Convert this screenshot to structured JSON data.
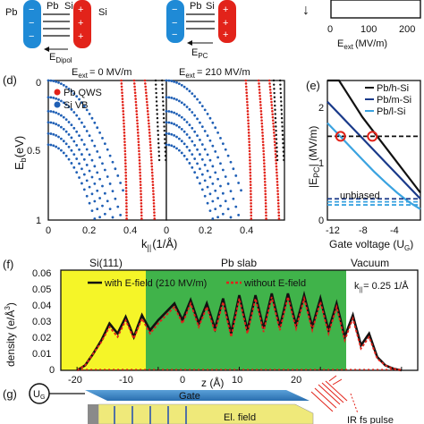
{
  "top": {
    "left_pb": "Pb",
    "left_pb2": "Pb",
    "left_si": "Si",
    "left_si2": "Si",
    "left_field": "E",
    "left_field_sub": "Dipol",
    "mid_pb": "Pb",
    "mid_si": "Si",
    "mid_field": "E",
    "mid_field_sub": "PC",
    "panel_c_xlabel": "E",
    "panel_c_xlabel_sub": "ext",
    "panel_c_xunit": "(MV/m)",
    "panel_c_ticks": [
      "0",
      "100",
      "200"
    ]
  },
  "panel_d": {
    "label": "(d)",
    "title_left": "E",
    "title_left_sub": "ext",
    "title_left_val": "= 0 MV/m",
    "title_right": "E",
    "title_right_sub": "ext",
    "title_right_val": "= 210 MV/m",
    "legend": [
      "Pb QWS",
      "Si VB"
    ],
    "ylabel": "E",
    "ylabel_sub": "b",
    "ylabel_unit": "(eV)",
    "xlabel": "k",
    "xlabel_sub": "||",
    "xlabel_unit": "(1/Å)",
    "yticks": [
      "0",
      "0.5",
      "1"
    ],
    "xticks_left": [
      "0",
      "0.2",
      "0.4"
    ],
    "xticks_right": [
      "0",
      "0.2",
      "0.4"
    ]
  },
  "panel_e": {
    "label": "(e)",
    "legend": [
      "Pb/h-Si",
      "Pb/m-Si",
      "Pb/l-Si"
    ],
    "ylabel": "|E",
    "ylabel_sub": "PC",
    "ylabel_unit": "| (MV/m)",
    "xlabel": "Gate voltage (U",
    "xlabel_sub": "G",
    "xlabel_end": ")",
    "annotation": "unbiased",
    "yticks": [
      "0",
      "1",
      "2"
    ],
    "xticks": [
      "-12",
      "-8",
      "-4"
    ]
  },
  "panel_f": {
    "label": "(f)",
    "region_si": "Si(111)",
    "region_pb": "Pb slab",
    "region_vac": "Vacuum",
    "legend_with": "with E-field (210 MV/m)",
    "legend_without": "without E-field",
    "k_label": "k",
    "k_label_sub": "||",
    "k_label_val": "= 0.25 1/Å",
    "ylabel": "density (e/Å",
    "ylabel_sup": "3",
    "ylabel_end": ")",
    "xlabel": "z (Å)",
    "yticks": [
      "0",
      "0.01",
      "0.02",
      "0.03",
      "0.04",
      "0.05",
      "0.06"
    ],
    "xticks": [
      "-20",
      "-10",
      "0",
      "10",
      "20"
    ]
  },
  "panel_g": {
    "label": "(g)",
    "ug": "U",
    "ug_sub": "G",
    "gate": "Gate",
    "efield": "El. field",
    "pulse": "IR fs pulse"
  },
  "colors": {
    "pb_red": "#e2231a",
    "si_blue": "#1f5fb5",
    "yellow": "#f5f528",
    "green": "#40b34a",
    "gate_blue": "#2f7bbf",
    "lsi_blue": "#3aa3e0"
  },
  "chart_data": [
    {
      "type": "scatter",
      "title": "E_ext = 0 MV/m / E_ext = 210 MV/m",
      "xlabel": "k|| (1/Å)",
      "ylabel": "E_b (eV)",
      "xlim": [
        0,
        0.55
      ],
      "ylim": [
        1,
        0
      ],
      "series": [
        {
          "name": "Pb QWS",
          "description": "red dotted parabolic bands dispersing downward from ~0.5 eV at k≈0.35–0.5"
        },
        {
          "name": "Si VB",
          "description": "blue dotted bands dispersing from ~0–0.4 eV at k=0 down to 1 eV at k≈0.1–0.3"
        }
      ]
    },
    {
      "type": "line",
      "xlabel": "Gate voltage (U_G)",
      "ylabel": "|E_PC| (MV/m)",
      "xlim": [
        -14,
        -2
      ],
      "ylim": [
        0,
        2.3
      ],
      "series": [
        {
          "name": "Pb/h-Si",
          "x": [
            -14,
            -12.5,
            -11,
            -9.5,
            -8,
            -6.5,
            -5,
            -3.5,
            -2
          ],
          "y": [
            2.6,
            2.3,
            2.0,
            1.7,
            1.45,
            1.2,
            0.95,
            0.7,
            0.45
          ]
        },
        {
          "name": "Pb/m-Si",
          "x": [
            -14,
            -12.5,
            -11,
            -9.5,
            -8,
            -6.5,
            -5,
            -3.5,
            -2
          ],
          "y": [
            1.95,
            1.75,
            1.55,
            1.35,
            1.15,
            0.95,
            0.75,
            0.55,
            0.35
          ]
        },
        {
          "name": "Pb/l-Si",
          "x": [
            -14,
            -12.5,
            -11,
            -9.5,
            -8,
            -6.5,
            -5,
            -3.5,
            -2
          ],
          "y": [
            1.6,
            1.4,
            1.2,
            1.0,
            0.8,
            0.62,
            0.45,
            0.3,
            0.18
          ]
        }
      ],
      "reference_lines": [
        1.38,
        0.35,
        0.3,
        0.25
      ],
      "markers": [
        {
          "x": -12.3,
          "y": 1.38
        },
        {
          "x": -8.2,
          "y": 1.38
        }
      ]
    },
    {
      "type": "line",
      "xlabel": "z (Å)",
      "ylabel": "density (e/Å^3)",
      "xlim": [
        -22,
        22
      ],
      "ylim": [
        0,
        0.06
      ],
      "series": [
        {
          "name": "with E-field (210 MV/m)",
          "x": [
            -20,
            -19,
            -18,
            -17,
            -16,
            -15,
            -14,
            -13,
            -12,
            -11,
            -10,
            -9,
            -8,
            -7,
            -6,
            -5,
            -4,
            -3,
            -2,
            -1,
            0,
            1,
            2,
            3,
            4,
            5,
            6,
            7,
            8,
            9,
            10,
            11,
            12,
            13,
            14,
            15,
            16,
            17,
            18,
            19,
            20
          ],
          "y": [
            0,
            0.003,
            0.01,
            0.018,
            0.028,
            0.022,
            0.032,
            0.02,
            0.033,
            0.024,
            0.03,
            0.035,
            0.04,
            0.03,
            0.042,
            0.028,
            0.04,
            0.025,
            0.043,
            0.022,
            0.045,
            0.024,
            0.045,
            0.025,
            0.046,
            0.026,
            0.046,
            0.027,
            0.045,
            0.026,
            0.043,
            0.024,
            0.04,
            0.02,
            0.033,
            0.015,
            0.022,
            0.008,
            0.003,
            0.001,
            0
          ]
        },
        {
          "name": "without E-field",
          "x": [
            -20,
            -19,
            -18,
            -17,
            -16,
            -15,
            -14,
            -13,
            -12,
            -11,
            -10,
            -9,
            -8,
            -7,
            -6,
            -5,
            -4,
            -3,
            -2,
            -1,
            0,
            1,
            2,
            3,
            4,
            5,
            6,
            7,
            8,
            9,
            10,
            11,
            12,
            13,
            14,
            15,
            16,
            17,
            18,
            19,
            20
          ],
          "y": [
            0,
            0.003,
            0.01,
            0.017,
            0.026,
            0.02,
            0.03,
            0.019,
            0.031,
            0.022,
            0.028,
            0.033,
            0.038,
            0.028,
            0.04,
            0.026,
            0.038,
            0.023,
            0.041,
            0.02,
            0.043,
            0.022,
            0.043,
            0.023,
            0.044,
            0.024,
            0.044,
            0.025,
            0.043,
            0.024,
            0.041,
            0.022,
            0.038,
            0.018,
            0.031,
            0.013,
            0.02,
            0.007,
            0.003,
            0.001,
            0
          ]
        }
      ]
    }
  ]
}
